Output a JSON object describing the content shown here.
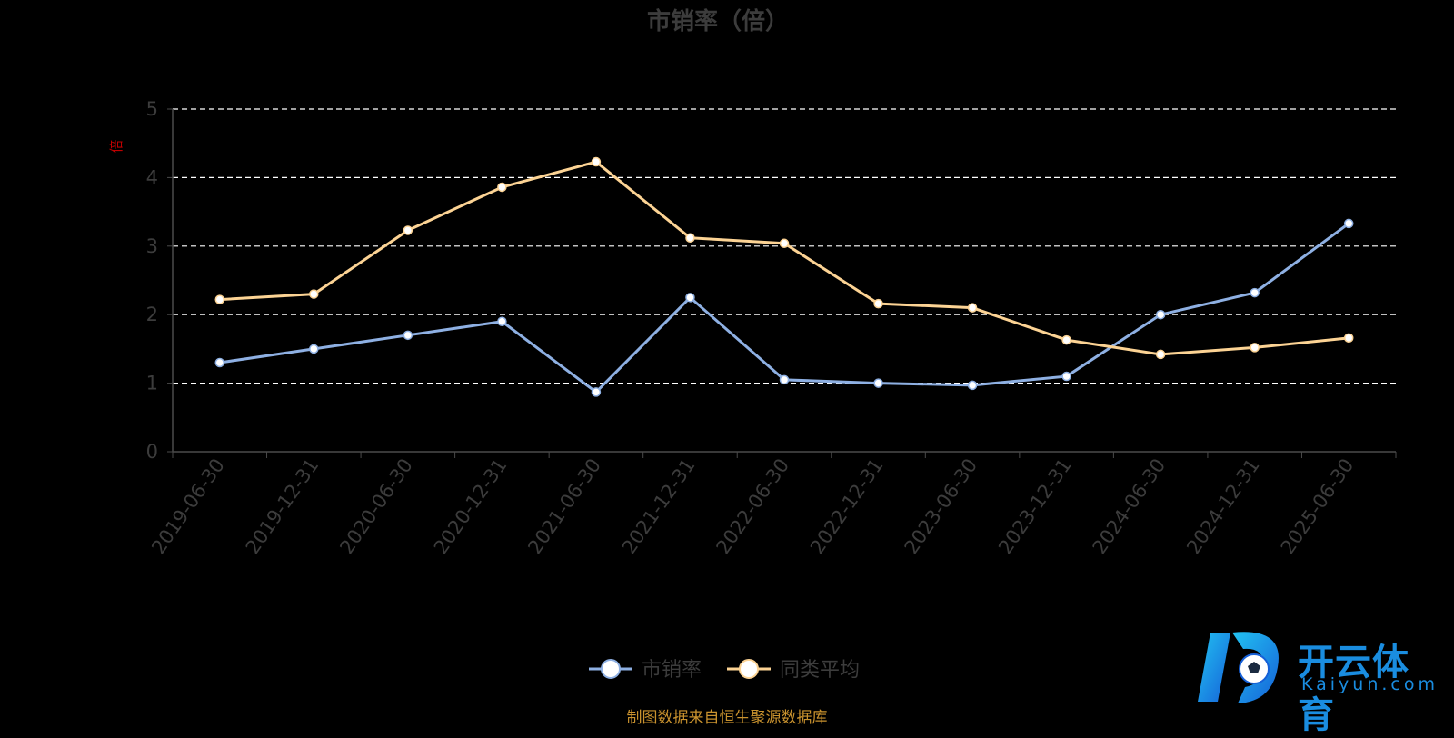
{
  "chart_data": {
    "type": "line",
    "title": "市销率（倍）",
    "ylabel": "倍",
    "ylim": [
      0,
      5
    ],
    "yticks": [
      "0",
      "1",
      "2",
      "3",
      "4",
      "5"
    ],
    "grid": true,
    "categories": [
      "2019-06-30",
      "2019-12-31",
      "2020-06-30",
      "2020-12-31",
      "2021-06-30",
      "2021-12-31",
      "2022-06-30",
      "2022-12-31",
      "2023-06-30",
      "2023-12-31",
      "2024-06-30",
      "2024-12-31",
      "2025-06-30"
    ],
    "series": [
      {
        "name": "市销率",
        "color": "#8eb0e3",
        "values": [
          1.3,
          1.5,
          1.7,
          1.9,
          0.87,
          2.25,
          1.05,
          1.0,
          0.97,
          1.1,
          2.0,
          2.32,
          3.33
        ]
      },
      {
        "name": "同类平均",
        "color": "#fcd394",
        "values": [
          2.22,
          2.3,
          3.23,
          3.86,
          4.23,
          3.12,
          3.04,
          2.16,
          2.1,
          1.63,
          1.42,
          1.52,
          1.66
        ]
      }
    ],
    "legend_position": "bottom-center"
  },
  "source_note": "制图数据来自恒生聚源数据库",
  "logo": {
    "name": "开云体育",
    "domain": "Kaiyun.com"
  }
}
